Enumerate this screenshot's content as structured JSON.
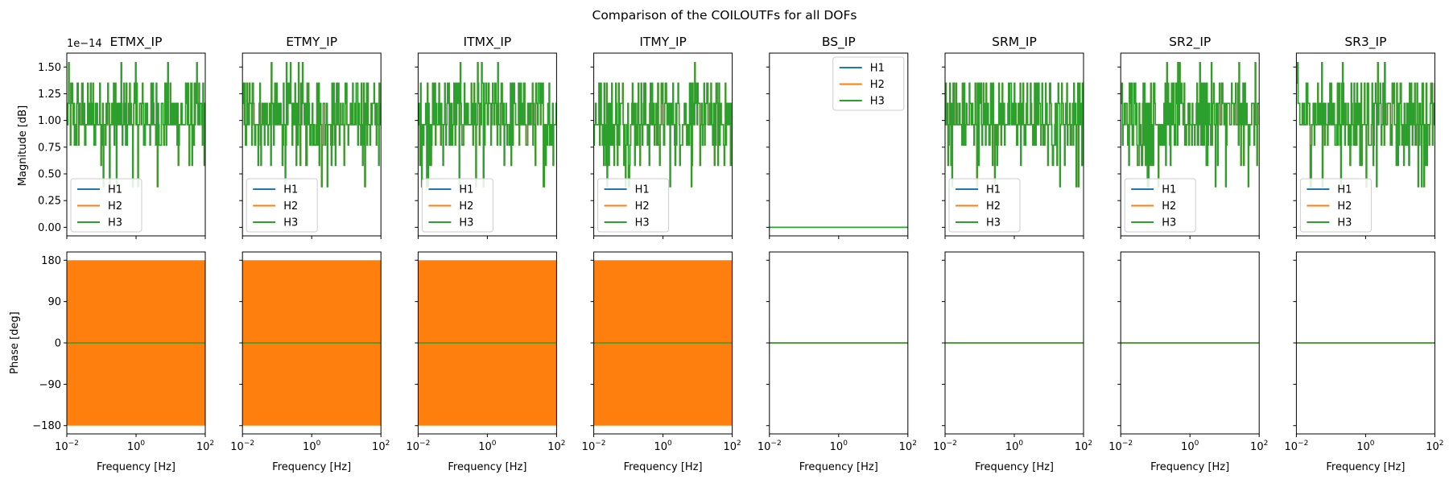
{
  "figure": {
    "suptitle": "Comparison of the COILOUTFs for all DOFs",
    "magnitude_ylabel": "Magnitude [dB]",
    "phase_ylabel": "Phase [deg]",
    "xlabel": "Frequency [Hz]",
    "magnitude_scale_label": "1e−14"
  },
  "colors": {
    "H1": "#1f77b4",
    "H2": "#ff7f0e",
    "H3": "#2ca02c",
    "axes": "#000000"
  },
  "chart_data": {
    "type": "line",
    "x_scale": "log",
    "xlim": [
      0.01,
      100
    ],
    "x_ticks": [
      {
        "value": 0.01,
        "label": "10^-2"
      },
      {
        "value": 1,
        "label": "10^0"
      },
      {
        "value": 100,
        "label": "10^2"
      }
    ],
    "magnitude": {
      "ylim": [
        -0.08,
        1.63
      ],
      "multiplier": "1e-14",
      "ticks": [
        0.0,
        0.25,
        0.5,
        0.75,
        1.0,
        1.25,
        1.5
      ],
      "tick_labels": [
        "0.00",
        "0.25",
        "0.50",
        "0.75",
        "1.00",
        "1.25",
        "1.50"
      ],
      "noise_levels": [
        0.38,
        0.58,
        0.77,
        0.96,
        1.16,
        1.35,
        1.54
      ],
      "noise_level_weights": [
        2,
        5,
        14,
        36,
        22,
        15,
        2
      ],
      "noise_mean": 1.0
    },
    "phase": {
      "ylim": [
        -198,
        198
      ],
      "ticks": [
        180,
        90,
        0,
        -90,
        -180
      ],
      "tick_labels": [
        "180",
        "90",
        "0",
        "−90",
        "−180"
      ],
      "band": [
        -180,
        180
      ]
    },
    "series_names": [
      "H1",
      "H2",
      "H3"
    ],
    "panels": [
      {
        "dof": "ETMX_IP",
        "magnitude_signal": "noise",
        "phase_signal": "wrapped",
        "legend_loc": "lower left"
      },
      {
        "dof": "ETMY_IP",
        "magnitude_signal": "noise",
        "phase_signal": "wrapped",
        "legend_loc": "lower left"
      },
      {
        "dof": "ITMX_IP",
        "magnitude_signal": "noise",
        "phase_signal": "wrapped",
        "legend_loc": "lower left"
      },
      {
        "dof": "ITMY_IP",
        "magnitude_signal": "noise",
        "phase_signal": "wrapped",
        "legend_loc": "lower left"
      },
      {
        "dof": "BS_IP",
        "magnitude_signal": "zero",
        "phase_signal": "zero",
        "legend_loc": "upper right"
      },
      {
        "dof": "SRM_IP",
        "magnitude_signal": "noise",
        "phase_signal": "zero",
        "legend_loc": "lower left"
      },
      {
        "dof": "SR2_IP",
        "magnitude_signal": "noise",
        "phase_signal": "zero",
        "legend_loc": "lower left"
      },
      {
        "dof": "SR3_IP",
        "magnitude_signal": "noise",
        "phase_signal": "zero",
        "legend_loc": "lower left"
      }
    ]
  }
}
